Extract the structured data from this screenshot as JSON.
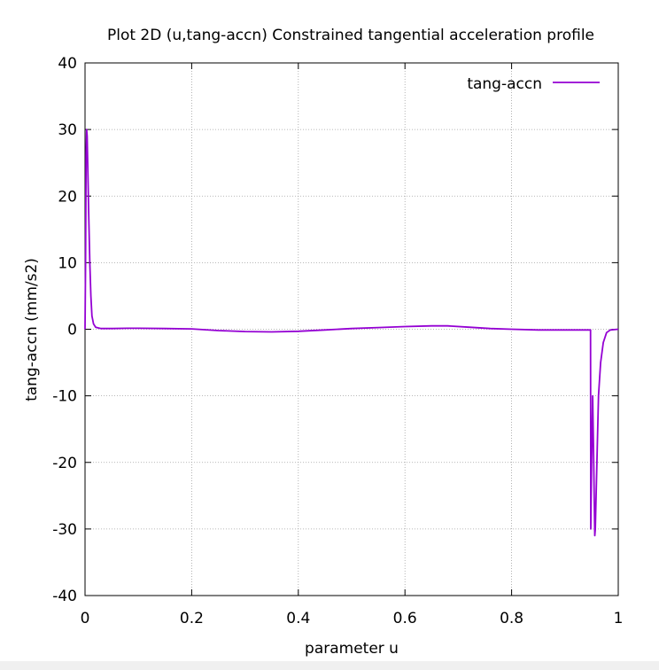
{
  "chart_data": {
    "type": "line",
    "title": "Plot 2D (u,tang-accn) Constrained tangential acceleration profile",
    "xlabel": "parameter u",
    "ylabel": "tang-accn (mm/s2)",
    "xlim": [
      0,
      1
    ],
    "ylim": [
      -40,
      40
    ],
    "x_ticks": [
      0,
      0.2,
      0.4,
      0.6,
      0.8,
      1
    ],
    "x_tick_labels": [
      "0",
      "0.2",
      "0.4",
      "0.6",
      "0.8",
      "1"
    ],
    "y_ticks": [
      -40,
      -30,
      -20,
      -10,
      0,
      10,
      20,
      30,
      40
    ],
    "y_tick_labels": [
      "-40",
      "-30",
      "-20",
      "-10",
      "0",
      "10",
      "20",
      "30",
      "40"
    ],
    "grid": true,
    "legend_position": "top-right",
    "series": [
      {
        "name": "tang-accn",
        "color": "#9400d3",
        "x": [
          0,
          0.001,
          0.002,
          0.003,
          0.004,
          0.005,
          0.007,
          0.009,
          0.011,
          0.013,
          0.016,
          0.02,
          0.025,
          0.03,
          0.05,
          0.08,
          0.1,
          0.15,
          0.2,
          0.25,
          0.3,
          0.35,
          0.4,
          0.45,
          0.5,
          0.55,
          0.6,
          0.65,
          0.68,
          0.72,
          0.76,
          0.8,
          0.85,
          0.9,
          0.948,
          0.9485,
          0.95,
          0.952,
          0.954,
          0.956,
          0.957,
          0.96,
          0.963,
          0.967,
          0.972,
          0.978,
          0.985,
          1.0
        ],
        "y": [
          0,
          10,
          26,
          30,
          29,
          25,
          17,
          10,
          5,
          2,
          0.8,
          0.3,
          0.2,
          0.1,
          0.1,
          0.15,
          0.15,
          0.1,
          0.05,
          -0.2,
          -0.35,
          -0.4,
          -0.3,
          -0.1,
          0.1,
          0.25,
          0.4,
          0.5,
          0.5,
          0.3,
          0.1,
          0.0,
          -0.1,
          -0.1,
          -0.1,
          -30,
          -20,
          -10,
          -20,
          -31,
          -30,
          -20,
          -10,
          -5,
          -2,
          -0.5,
          -0.1,
          0
        ]
      }
    ]
  }
}
